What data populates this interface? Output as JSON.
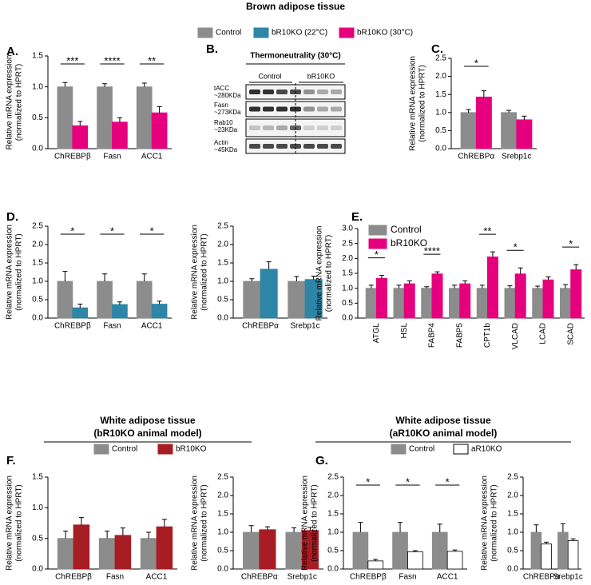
{
  "headers": {
    "brown": "Brown adipose tissue",
    "white_b": [
      "White adipose tissue",
      "(bR10KO animal model)"
    ],
    "white_a": [
      "White adipose tissue",
      "(aR10KO animal model)"
    ]
  },
  "blot": {
    "panel": "B.",
    "title": "Thermoneutrality (30°C)",
    "groups": [
      "Control",
      "bR10KO"
    ],
    "rows": [
      [
        "tACC",
        "~280KDa"
      ],
      [
        "Fasn",
        "~273KDa"
      ],
      [
        "Rab10",
        "~23KDa"
      ],
      [
        "Actin",
        "~45KDa"
      ]
    ]
  },
  "chart_data": [
    {
      "type": "bar",
      "panel": "A.",
      "ylabel": [
        "Relative mRNA expression",
        "(normalized to HPRT)"
      ],
      "categories": [
        "ChREBPβ",
        "Fasn",
        "ACC1"
      ],
      "series": [
        {
          "name": "Control",
          "color": "#8c8c8c",
          "values": [
            1.0,
            1.0,
            1.0
          ],
          "errors": [
            0.07,
            0.05,
            0.06
          ]
        },
        {
          "name": "bR10KO (30°C)",
          "color": "#e6007e",
          "values": [
            0.37,
            0.43,
            0.58
          ],
          "errors": [
            0.07,
            0.07,
            0.1
          ]
        }
      ],
      "ylim": [
        0,
        1.5
      ],
      "yticks": [
        {
          "value": 0,
          "label": "0.0"
        },
        0.5,
        {
          "value": 1,
          "label": "1.0"
        },
        1.5
      ],
      "annotations": [
        "***",
        "****",
        "**"
      ]
    },
    {
      "type": "bar",
      "panel": "C.",
      "ylabel": [
        "Relative mRNA expression",
        "(normalized to HPRT)"
      ],
      "categories": [
        "ChREBPα",
        "Srebp1c"
      ],
      "series": [
        {
          "name": "Control",
          "color": "#8c8c8c",
          "values": [
            1.0,
            1.0
          ],
          "errors": [
            0.08,
            0.06
          ]
        },
        {
          "name": "bR10KO (30°C)",
          "color": "#e6007e",
          "values": [
            1.43,
            0.8
          ],
          "errors": [
            0.17,
            0.1
          ]
        }
      ],
      "ylim": [
        0,
        2.5
      ],
      "yticks": [
        {
          "value": 0,
          "label": "0.0"
        },
        0.5,
        {
          "value": 1,
          "label": "1.0"
        },
        1.5,
        {
          "value": 2,
          "label": "2.0"
        },
        2.5
      ],
      "annotations": [
        "*",
        null
      ]
    },
    {
      "type": "bar",
      "panel": "D.",
      "ylabel": [
        "Relative mRNA expression",
        "(normalized to HPRT)"
      ],
      "categories": [
        "ChREBPβ",
        "Fasn",
        "ACC1"
      ],
      "series": [
        {
          "name": "Control",
          "color": "#8c8c8c",
          "values": [
            1.0,
            1.0,
            1.0
          ],
          "errors": [
            0.27,
            0.2,
            0.2
          ]
        },
        {
          "name": "bR10KO (22°C)",
          "color": "#2e86a6",
          "values": [
            0.28,
            0.37,
            0.38
          ],
          "errors": [
            0.1,
            0.07,
            0.08
          ]
        }
      ],
      "ylim": [
        0,
        2.5
      ],
      "yticks": [
        {
          "value": 0,
          "label": "0.0"
        },
        0.5,
        {
          "value": 1,
          "label": "1.0"
        },
        1.5,
        {
          "value": 2,
          "label": "2.0"
        },
        2.5
      ],
      "annotations": [
        "*",
        "*",
        "*"
      ]
    },
    {
      "type": "bar",
      "ylabel": [
        "Relative mRNA expression",
        "(normalized to HPRT)"
      ],
      "categories": [
        "ChREBPα",
        "Srebp1c"
      ],
      "series": [
        {
          "name": "Control",
          "color": "#8c8c8c",
          "values": [
            1.0,
            1.0
          ],
          "errors": [
            0.07,
            0.13
          ]
        },
        {
          "name": "bR10KO (22°C)",
          "color": "#2e86a6",
          "values": [
            1.33,
            1.05
          ],
          "errors": [
            0.2,
            0.09
          ]
        }
      ],
      "ylim": [
        0,
        2.5
      ],
      "yticks": [
        {
          "value": 0,
          "label": "0.0"
        },
        0.5,
        {
          "value": 1,
          "label": "1.0"
        },
        1.5,
        {
          "value": 2,
          "label": "2.0"
        },
        2.5
      ]
    },
    {
      "type": "bar",
      "panel": "E.",
      "ylabel": [
        "Relative mRNA expression",
        "(normalized to HPRT)"
      ],
      "categories": [
        "ATGL",
        "HSL",
        "FABP4",
        "FABP5",
        "CPT1b",
        "VLCAD",
        "LCAD",
        "SCAD"
      ],
      "xlabel_rotation": 90,
      "legend": "top-left",
      "series": [
        {
          "name": "Control",
          "color": "#8c8c8c",
          "values": [
            1.0,
            1.0,
            1.0,
            1.0,
            1.0,
            1.0,
            1.0,
            1.0
          ],
          "errors": [
            0.1,
            0.1,
            0.05,
            0.1,
            0.1,
            0.08,
            0.07,
            0.12
          ]
        },
        {
          "name": "bR10KO",
          "color": "#e6007e",
          "values": [
            1.33,
            1.15,
            1.48,
            1.15,
            2.05,
            1.48,
            1.28,
            1.62
          ],
          "errors": [
            0.1,
            0.1,
            0.07,
            0.1,
            0.17,
            0.2,
            0.1,
            0.17
          ]
        }
      ],
      "ylim": [
        0,
        3
      ],
      "yticks": [
        {
          "value": 0,
          "label": "0.0"
        },
        0.5,
        {
          "value": 1,
          "label": "1.0"
        },
        1.5,
        {
          "value": 2,
          "label": "2.0"
        },
        2.5,
        {
          "value": 3,
          "label": "3.0"
        }
      ],
      "annotations": [
        "*",
        null,
        "****",
        null,
        "**",
        "*",
        null,
        "*"
      ]
    },
    {
      "type": "bar",
      "panel": "F.",
      "ylabel": [
        "Relative mRNA expression",
        "(normalized to HPRT)"
      ],
      "categories": [
        "ChREBPβ",
        "Fasn",
        "ACC1"
      ],
      "series": [
        {
          "name": "Control",
          "color": "#8c8c8c",
          "values": [
            0.5,
            0.5,
            0.5
          ],
          "errors": [
            0.12,
            0.12,
            0.1
          ]
        },
        {
          "name": "bR10KO",
          "color": "#a81c24",
          "values": [
            0.72,
            0.55,
            0.69
          ],
          "errors": [
            0.12,
            0.12,
            0.12
          ]
        }
      ],
      "ylim": [
        0,
        1.5
      ],
      "yticks": [
        {
          "value": 0,
          "label": "0.0"
        },
        0.5,
        {
          "value": 1,
          "label": "1.0"
        },
        1.5
      ]
    },
    {
      "type": "bar",
      "ylabel": [
        "Relative mRNA expression",
        "(normalized to HPRT)"
      ],
      "categories": [
        "ChREBPα",
        "Srebp1c"
      ],
      "series": [
        {
          "name": "Control",
          "color": "#8c8c8c",
          "values": [
            1.0,
            1.0
          ],
          "errors": [
            0.18,
            0.12
          ]
        },
        {
          "name": "bR10KO",
          "color": "#a81c24",
          "values": [
            1.07,
            1.05
          ],
          "errors": [
            0.08,
            0.08
          ]
        }
      ],
      "ylim": [
        0,
        2.5
      ],
      "yticks": [
        {
          "value": 0,
          "label": "0.0"
        },
        0.5,
        {
          "value": 1,
          "label": "1.0"
        },
        1.5,
        {
          "value": 2,
          "label": "2.0"
        },
        2.5
      ]
    },
    {
      "type": "bar",
      "panel": "G.",
      "ylabel": [
        "Relative mRNA expression",
        "(normalized to HPRT)"
      ],
      "categories": [
        "ChREBPβ",
        "Fasn",
        "ACC1"
      ],
      "series": [
        {
          "name": "Control",
          "color": "#8c8c8c",
          "values": [
            1.0,
            1.0,
            1.0
          ],
          "errors": [
            0.27,
            0.27,
            0.22
          ]
        },
        {
          "name": "aR10KO",
          "color": "#ffffff",
          "values": [
            0.22,
            0.47,
            0.48
          ],
          "errors": [
            0.04,
            0.03,
            0.04
          ]
        }
      ],
      "ylim": [
        0,
        2.5
      ],
      "yticks": [
        {
          "value": 0,
          "label": "0.0"
        },
        0.5,
        {
          "value": 1,
          "label": "1.0"
        },
        1.5,
        {
          "value": 2,
          "label": "2.0"
        },
        2.5
      ],
      "annotations": [
        "*",
        "*",
        "*"
      ]
    },
    {
      "type": "bar",
      "ylabel": [
        "Relative mRNA expression",
        "(normalized to HPRT)"
      ],
      "categories": [
        "ChREBPα",
        "Srebp1c"
      ],
      "series": [
        {
          "name": "Control",
          "color": "#8c8c8c",
          "values": [
            1.0,
            1.0
          ],
          "errors": [
            0.2,
            0.23
          ]
        },
        {
          "name": "aR10KO",
          "color": "#ffffff",
          "values": [
            0.68,
            0.77
          ],
          "errors": [
            0.05,
            0.05
          ]
        }
      ],
      "ylim": [
        0,
        2.5
      ],
      "yticks": [
        {
          "value": 0,
          "label": "0.0"
        },
        0.5,
        {
          "value": 1,
          "label": "1.0"
        },
        1.5,
        {
          "value": 2,
          "label": "2.0"
        },
        2.5
      ]
    }
  ]
}
